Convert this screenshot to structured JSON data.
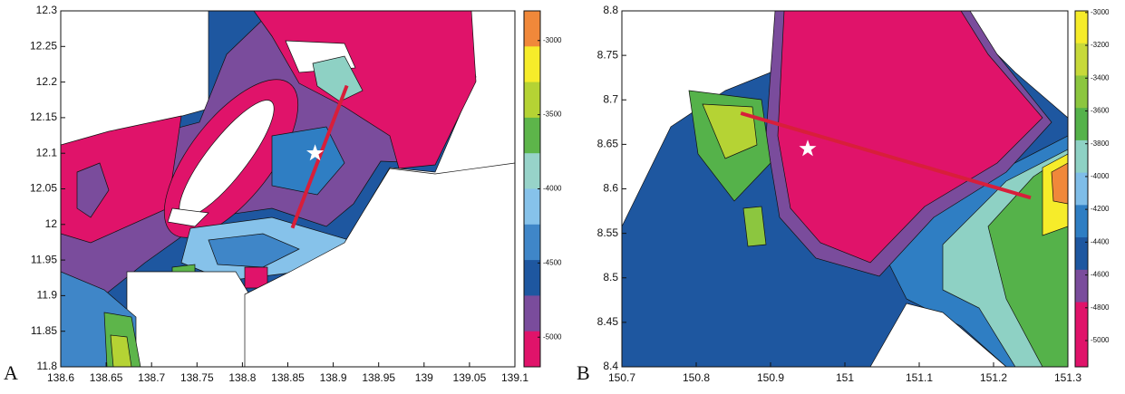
{
  "chart_data": [
    {
      "type": "contour",
      "panel_label": "A",
      "xlim": [
        138.6,
        139.1
      ],
      "xticks": [
        138.6,
        138.65,
        138.7,
        138.75,
        138.8,
        138.85,
        138.9,
        138.95,
        139,
        139.05,
        139.1
      ],
      "ylim": [
        11.8,
        12.3
      ],
      "yticks": [
        11.8,
        11.85,
        11.9,
        11.95,
        12,
        12.05,
        12.1,
        12.15,
        12.2,
        12.25,
        12.3
      ],
      "colorbar": {
        "lim": [
          -5200,
          -2800
        ],
        "ticks": [
          -3000,
          -3500,
          -4000,
          -4500,
          -5000
        ],
        "colors": [
          "#f0883a",
          "#f6ec2a",
          "#b5d334",
          "#5db54a",
          "#97d3c9",
          "#86c2ea",
          "#3f86c8",
          "#1e57a0",
          "#7a4c9c",
          "#e0136a"
        ]
      },
      "transect": {
        "x": [
          138.855,
          138.915
        ],
        "y": [
          11.995,
          12.195
        ],
        "color": "#d81e3a"
      },
      "star": {
        "x": 138.88,
        "y": 12.1,
        "color": "#ffffff"
      }
    },
    {
      "type": "contour",
      "panel_label": "B",
      "xlim": [
        150.7,
        151.3
      ],
      "xticks": [
        150.7,
        150.8,
        150.9,
        151,
        151.1,
        151.2,
        151.3
      ],
      "ylim": [
        8.4,
        8.8
      ],
      "yticks": [
        8.4,
        8.45,
        8.5,
        8.55,
        8.6,
        8.65,
        8.7,
        8.75,
        8.8
      ],
      "colorbar": {
        "lim": [
          -5160,
          -2990
        ],
        "ticks": [
          -3000,
          -3200,
          -3400,
          -3600,
          -3800,
          -4000,
          -4200,
          -4400,
          -4600,
          -4800,
          -5000
        ],
        "colors": [
          "#f6ec2a",
          "#c7d93a",
          "#8cc63f",
          "#55b24a",
          "#8ed1c4",
          "#7fbde8",
          "#2f7ec3",
          "#1e57a0",
          "#7a4c9c",
          "#e0136a",
          "#e0136a"
        ]
      },
      "transect": {
        "x": [
          150.86,
          151.25
        ],
        "y": [
          8.685,
          8.59
        ],
        "color": "#d81e3a"
      },
      "star": {
        "x": 150.95,
        "y": 8.645,
        "color": "#ffffff"
      }
    }
  ]
}
